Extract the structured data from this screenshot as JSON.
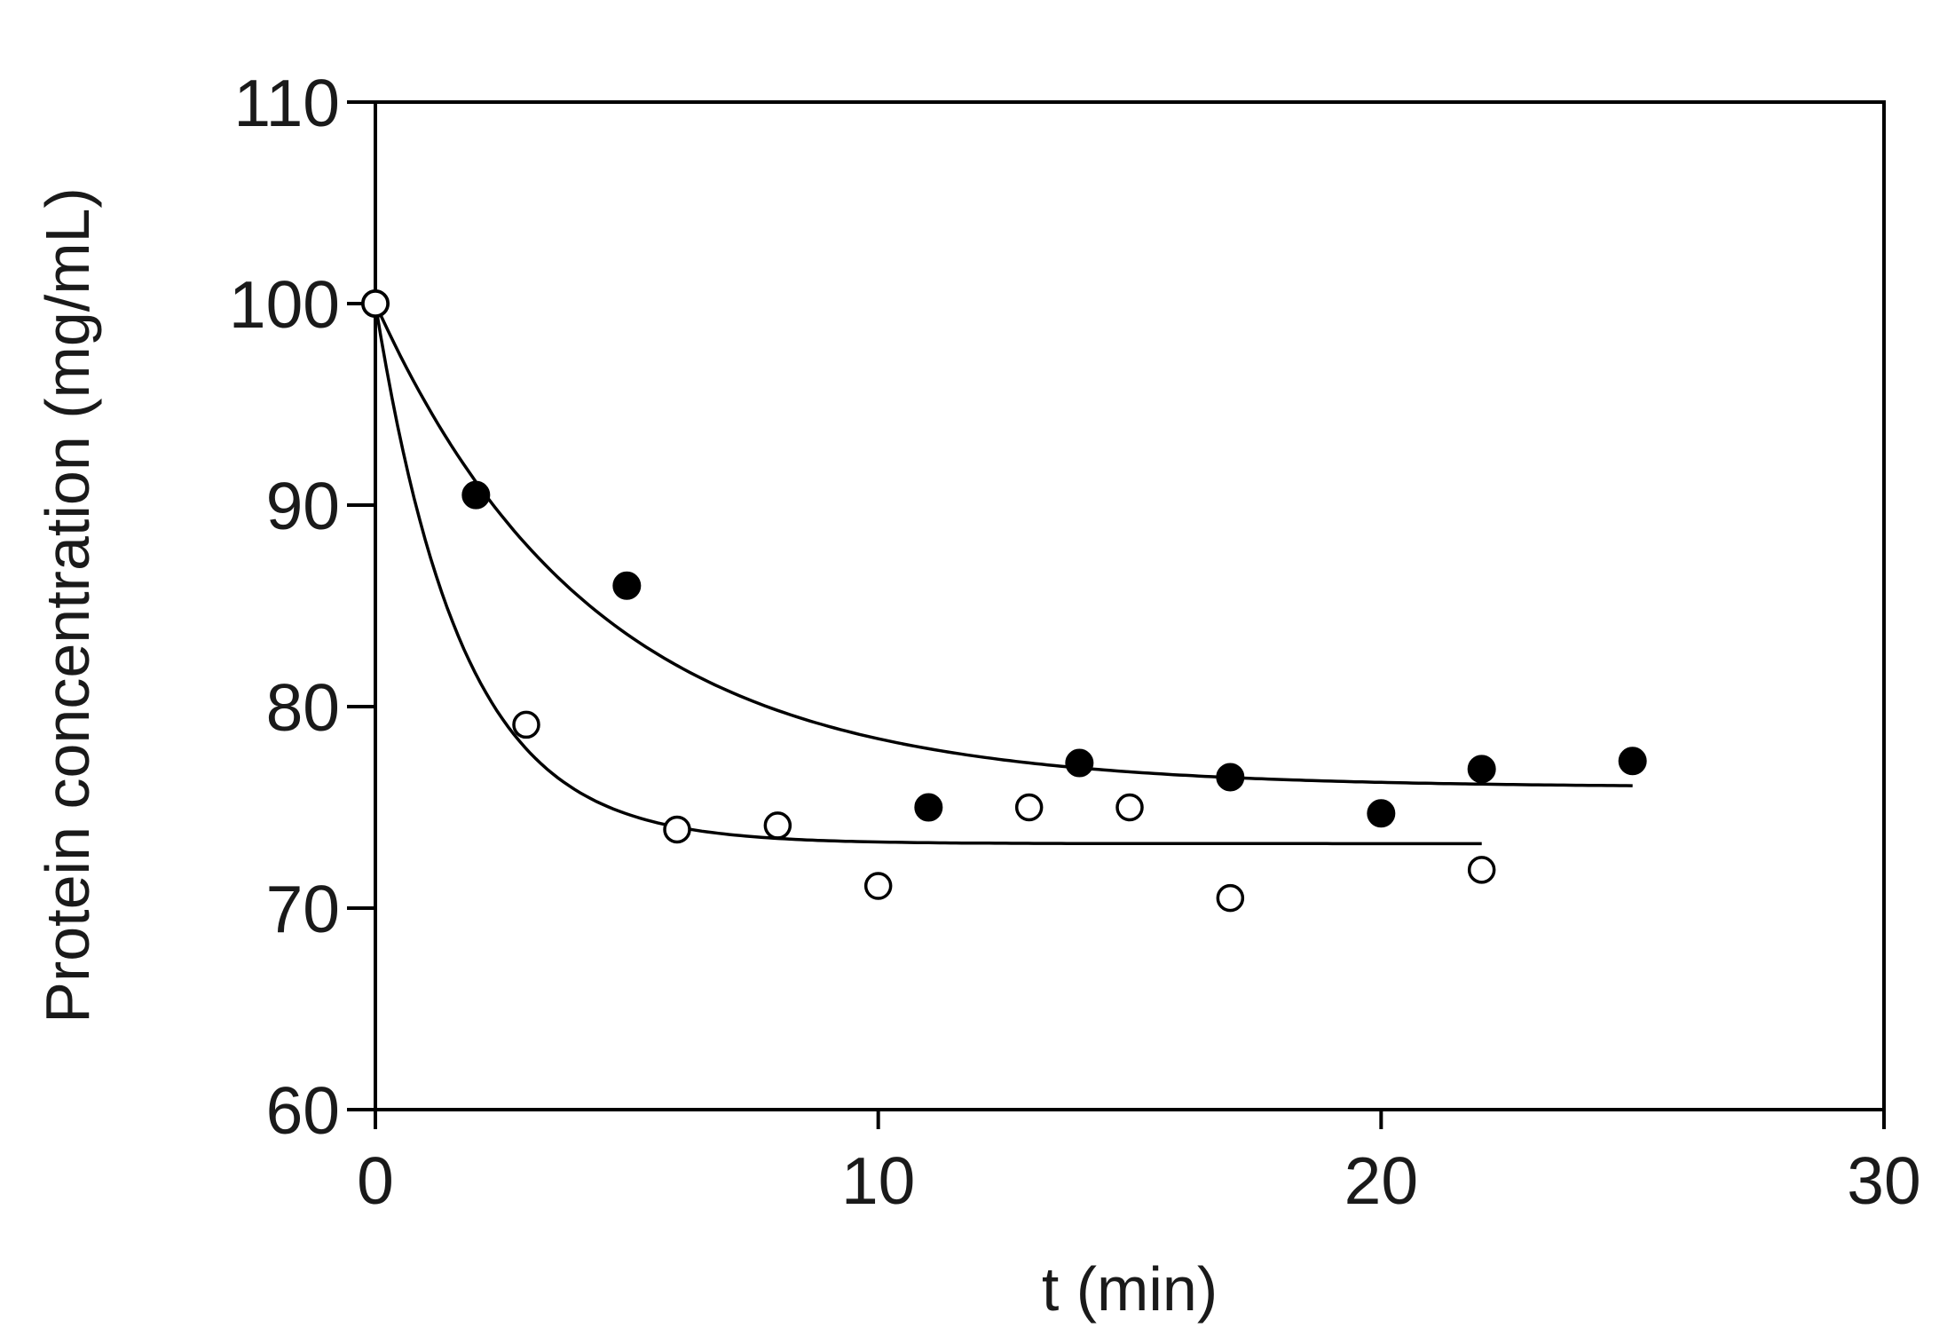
{
  "chart_data": {
    "type": "scatter",
    "xlabel": "t (min)",
    "ylabel": "Protein concentration (mg/mL)",
    "xlim": [
      0,
      30
    ],
    "ylim": [
      60,
      110
    ],
    "xticks": [
      0,
      10,
      20,
      30
    ],
    "yticks": [
      60,
      70,
      80,
      90,
      100,
      110
    ],
    "grid": false,
    "series": [
      {
        "marker": "filled-circle",
        "color": "#000000",
        "x": [
          0,
          2,
          5,
          11,
          14,
          17,
          20,
          22,
          25
        ],
        "y": [
          100,
          90.5,
          86.0,
          75.0,
          77.2,
          76.5,
          74.7,
          76.9,
          77.3
        ],
        "fit": {
          "plateau": 76.0,
          "start": 100,
          "k": 0.23,
          "xmax": 25
        }
      },
      {
        "marker": "open-circle",
        "color": "#000000",
        "x": [
          0,
          3,
          6,
          8,
          10,
          13,
          15,
          17,
          22
        ],
        "y": [
          100,
          79.1,
          73.9,
          74.1,
          71.1,
          75.0,
          75.0,
          70.5,
          71.9
        ],
        "fit": {
          "plateau": 73.2,
          "start": 100,
          "k": 0.58,
          "xmax": 22
        }
      }
    ]
  }
}
